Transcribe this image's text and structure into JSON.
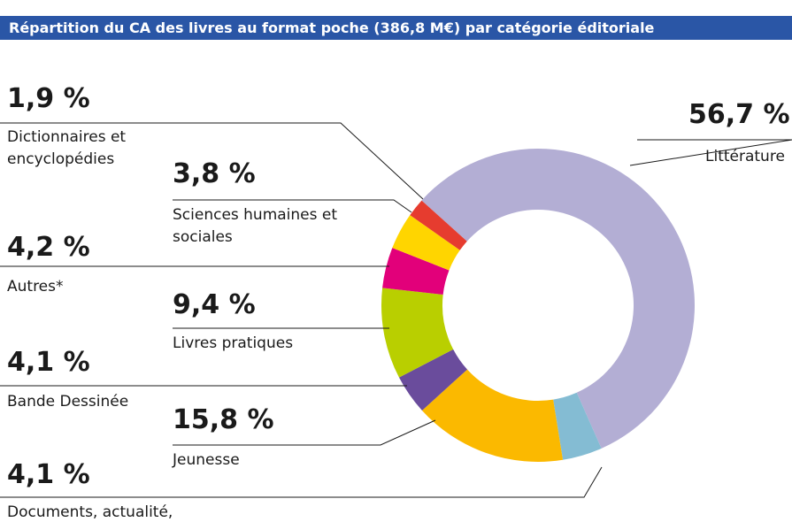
{
  "chart_data": {
    "type": "donut",
    "title": "Répartition du CA des livres au format poche (386,8 M€) par catégorie éditoriale",
    "categories": [
      "Littérature",
      "Documents, actualité, essais",
      "Jeunesse",
      "Bande Dessinée",
      "Livres pratiques",
      "Autres*",
      "Sciences humaines et sociales",
      "Dictionnaires et encyclopédies"
    ],
    "values": [
      56.7,
      4.1,
      15.8,
      4.1,
      9.4,
      4.2,
      3.8,
      1.9
    ],
    "value_labels": [
      "56,7 %",
      "4,1 %",
      "15,8 %",
      "4,1 %",
      "9,4 %",
      "4,2 %",
      "3,8 %",
      "1,9 %"
    ],
    "colors": [
      "#b3aed4",
      "#84bcd3",
      "#fbb900",
      "#6a4c9c",
      "#b9cf00",
      "#e2007a",
      "#ffd500",
      "#e63c2f"
    ]
  }
}
